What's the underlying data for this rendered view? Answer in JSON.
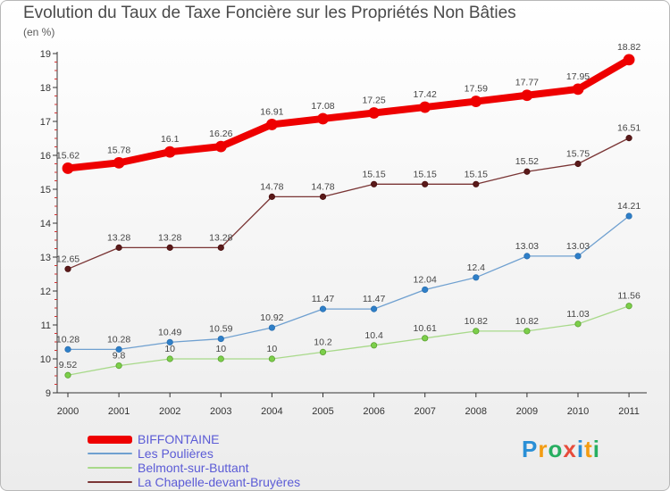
{
  "title": "Evolution du Taux de Taxe Foncière sur les Propriétés Non Bâties",
  "unit_label": "(en %)",
  "brand": {
    "letters": [
      "P",
      "r",
      "o",
      "x",
      "i",
      "t",
      "i"
    ],
    "colors": [
      "#2a8fd6",
      "#f39c12",
      "#27ae60",
      "#e74c3c",
      "#2a8fd6",
      "#f39c12",
      "#27ae60"
    ]
  },
  "chart_data": {
    "type": "line",
    "title": "Evolution du Taux de Taxe Foncière sur les Propriétés Non Bâties",
    "ylabel": "(en %)",
    "xlabel": "",
    "x": [
      "2000",
      "2001",
      "2002",
      "2003",
      "2004",
      "2005",
      "2006",
      "2007",
      "2008",
      "2009",
      "2010",
      "2011"
    ],
    "ylim": [
      9,
      19
    ],
    "yticks": [
      9,
      10,
      11,
      12,
      13,
      14,
      15,
      16,
      17,
      18,
      19
    ],
    "grid": false,
    "legend": "bottom-left",
    "series": [
      {
        "name": "BIFFONTAINE",
        "color": "#ee0000",
        "values": [
          15.62,
          15.78,
          16.1,
          16.26,
          16.91,
          17.08,
          17.25,
          17.42,
          17.59,
          17.77,
          17.95,
          18.82
        ],
        "labels": [
          "15.62",
          "15.78",
          "16.1",
          "16.26",
          "16.91",
          "17.08",
          "17.25",
          "17.42",
          "17.59",
          "17.77",
          "17.95",
          "18.82"
        ]
      },
      {
        "name": "Les Poulières",
        "color": "#6fa0d0",
        "values": [
          10.28,
          10.28,
          10.49,
          10.59,
          10.92,
          11.47,
          11.47,
          12.04,
          12.4,
          13.03,
          13.03,
          14.21
        ],
        "labels": [
          "10.28",
          "10.28",
          "10.49",
          "10.59",
          "10.92",
          "11.47",
          "11.47",
          "12.04",
          "12.4",
          "13.03",
          "13.03",
          "14.21"
        ]
      },
      {
        "name": "Belmont-sur-Buttant",
        "color": "#a8d98a",
        "values": [
          9.52,
          9.8,
          10,
          10,
          10,
          10.2,
          10.4,
          10.61,
          10.82,
          10.82,
          11.03,
          11.56
        ],
        "labels": [
          "9.52",
          "9.8",
          "10",
          "10",
          "10",
          "10.2",
          "10.4",
          "10.61",
          "10.82",
          "10.82",
          "11.03",
          "11.56"
        ]
      },
      {
        "name": "La Chapelle-devant-Bruyères",
        "color": "#7a3535",
        "values": [
          12.65,
          13.28,
          13.28,
          13.28,
          14.78,
          14.78,
          15.15,
          15.15,
          15.15,
          15.52,
          15.75,
          16.51
        ],
        "labels": [
          "12.65",
          "13.28",
          "13.28",
          "13.28",
          "14.78",
          "14.78",
          "15.15",
          "15.15",
          "15.15",
          "15.52",
          "15.75",
          "16.51"
        ]
      }
    ]
  }
}
